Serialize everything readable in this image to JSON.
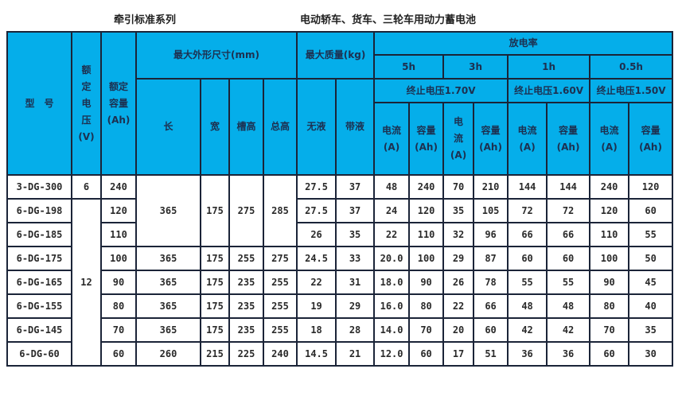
{
  "titles": {
    "left": "牵引标准系列",
    "right": "电动轿车、货车、三轮车用动力蓄电池"
  },
  "colors": {
    "header_bg": "#05aeea",
    "border": "#1b2438",
    "body_bg": "#ffffff"
  },
  "header": {
    "model": "型　号",
    "voltage": "额\n定\n电\n压\n(V)",
    "capacity": "额定\n容量\n(Ah)",
    "dims": "最大外形尺寸(mm)",
    "length": "长",
    "width": "宽",
    "slot_height": "槽高",
    "total_height": "总高",
    "mass": "最大质量(kg)",
    "dry": "无液",
    "wet": "带液",
    "discharge": "放电率",
    "rates": [
      "5h",
      "3h",
      "1h",
      "0.5h"
    ],
    "cutoffs": [
      "终止电压1.70V",
      "终止电压1.60V",
      "终止电压1.50V"
    ],
    "current": "电流\n(A)",
    "current_3h": "电\n流\n(A)",
    "cap_ah": "容量\n(Ah)"
  },
  "rows": [
    {
      "model": "3-DG-300",
      "voltage": "6",
      "capacity": "240",
      "dims": [
        "365",
        "175",
        "275",
        "285"
      ],
      "mass": [
        "27.5",
        "37"
      ],
      "discharge": [
        "48",
        "240",
        "70",
        "210",
        "144",
        "144",
        "240",
        "120"
      ]
    },
    {
      "model": "6-DG-198",
      "voltage": "12",
      "capacity": "120",
      "dims": null,
      "mass": [
        "27.5",
        "37"
      ],
      "discharge": [
        "24",
        "120",
        "35",
        "105",
        "72",
        "72",
        "120",
        "60"
      ]
    },
    {
      "model": "6-DG-185",
      "voltage": null,
      "capacity": "110",
      "dims": null,
      "mass": [
        "26",
        "35"
      ],
      "discharge": [
        "22",
        "110",
        "32",
        "96",
        "66",
        "66",
        "110",
        "55"
      ]
    },
    {
      "model": "6-DG-175",
      "voltage": null,
      "capacity": "100",
      "dims": [
        "365",
        "175",
        "255",
        "275"
      ],
      "mass": [
        "24.5",
        "33"
      ],
      "discharge": [
        "20.0",
        "100",
        "29",
        "87",
        "60",
        "60",
        "100",
        "50"
      ]
    },
    {
      "model": "6-DG-165",
      "voltage": null,
      "capacity": "90",
      "dims": [
        "365",
        "175",
        "235",
        "255"
      ],
      "mass": [
        "22",
        "31"
      ],
      "discharge": [
        "18.0",
        "90",
        "26",
        "78",
        "55",
        "55",
        "90",
        "45"
      ]
    },
    {
      "model": "6-DG-155",
      "voltage": null,
      "capacity": "80",
      "dims": [
        "365",
        "175",
        "235",
        "255"
      ],
      "mass": [
        "19",
        "29"
      ],
      "discharge": [
        "16.0",
        "80",
        "22",
        "66",
        "48",
        "48",
        "80",
        "40"
      ]
    },
    {
      "model": "6-DG-145",
      "voltage": null,
      "capacity": "70",
      "dims": [
        "365",
        "175",
        "235",
        "255"
      ],
      "mass": [
        "18",
        "28"
      ],
      "discharge": [
        "14.0",
        "70",
        "20",
        "60",
        "42",
        "42",
        "70",
        "35"
      ]
    },
    {
      "model": "6-DG-60",
      "voltage": null,
      "capacity": "60",
      "dims": [
        "260",
        "215",
        "225",
        "240"
      ],
      "mass": [
        "14.5",
        "21"
      ],
      "discharge": [
        "12.0",
        "60",
        "17",
        "51",
        "36",
        "36",
        "60",
        "30"
      ]
    }
  ]
}
